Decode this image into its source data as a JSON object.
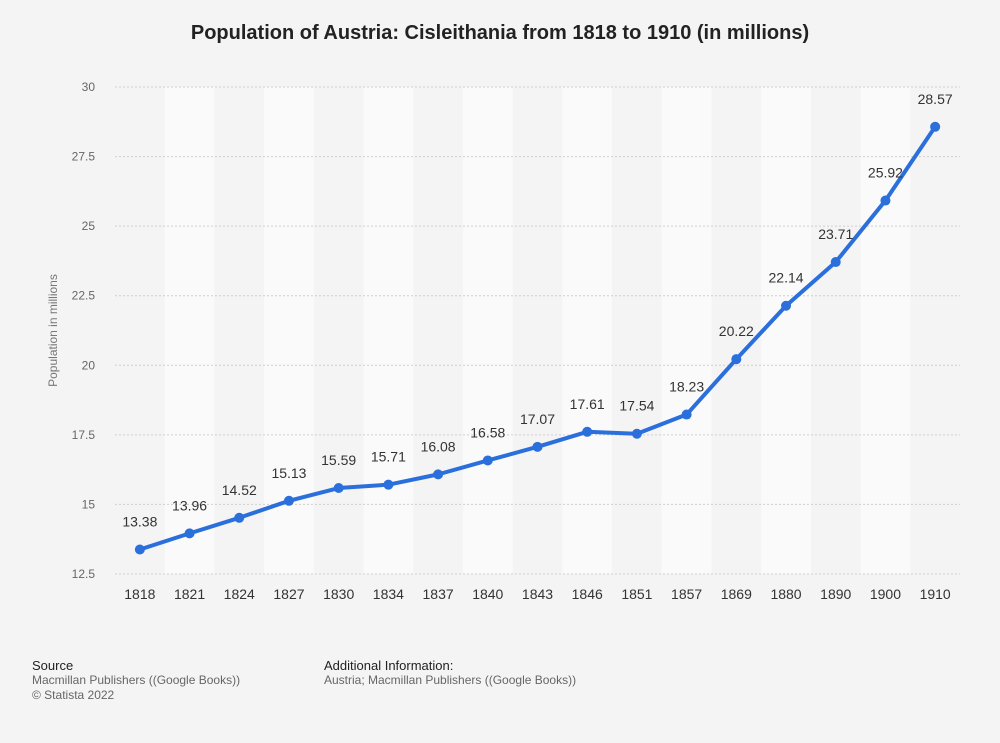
{
  "chart_data": {
    "type": "line",
    "title": "Population of Austria: Cisleithania from 1818 to 1910 (in millions)",
    "ylabel": "Population in millions",
    "xlabel": "",
    "categories": [
      "1818",
      "1821",
      "1824",
      "1827",
      "1830",
      "1834",
      "1837",
      "1840",
      "1843",
      "1846",
      "1851",
      "1857",
      "1869",
      "1880",
      "1890",
      "1900",
      "1910"
    ],
    "values": [
      13.38,
      13.96,
      14.52,
      15.13,
      15.59,
      15.71,
      16.08,
      16.58,
      17.07,
      17.61,
      17.54,
      18.23,
      20.22,
      22.14,
      23.71,
      25.92,
      28.57
    ],
    "value_labels": [
      "13.38",
      "13.96",
      "14.52",
      "15.13",
      "15.59",
      "15.71",
      "16.08",
      "16.58",
      "17.07",
      "17.61",
      "17.54",
      "18.23",
      "20.22",
      "22.14",
      "23.71",
      "25.92",
      "28.57"
    ],
    "ylim": [
      12.5,
      30
    ],
    "yticks": [
      12.5,
      15,
      17.5,
      20,
      22.5,
      25,
      27.5,
      30
    ],
    "ytick_labels": [
      "12.5",
      "15",
      "17.5",
      "20",
      "22.5",
      "25",
      "27.5",
      "30"
    ],
    "grid": true,
    "line_color": "#2a6fdb",
    "band_color": "#fafafa"
  },
  "footer": {
    "source_heading": "Source",
    "source_line1": "Macmillan Publishers ((Google Books))",
    "source_line2": "© Statista 2022",
    "info_heading": "Additional Information:",
    "info_line1": "Austria; Macmillan Publishers ((Google Books))"
  }
}
